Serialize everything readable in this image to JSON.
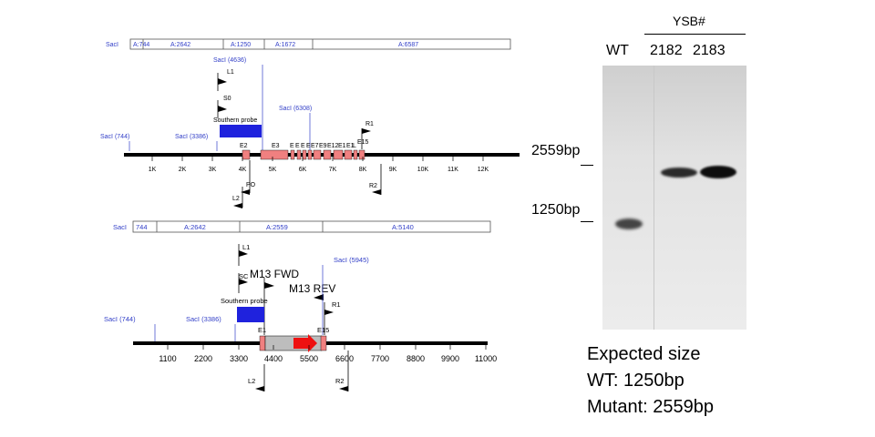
{
  "map1": {
    "segments": [
      "SacI",
      "A:744",
      "A:2642",
      "A:1250",
      "A:1672",
      "A:6587"
    ],
    "sites": {
      "saci_744": "SacI (744)",
      "saci_3386": "SacI (3386)",
      "saci_4636": "SacI (4636)",
      "saci_6308": "SacI (6308)"
    },
    "primers": {
      "l1": "L1",
      "s0": "S0",
      "po": "PO",
      "l2": "L2",
      "r1": "R1",
      "r2": "R2"
    },
    "probe": "Southern probe",
    "exons": [
      "E2",
      "E3",
      "E",
      "E",
      "E",
      "E",
      "E7",
      "E9",
      "E12",
      "E1",
      "E1",
      "L",
      "E15"
    ],
    "axis": [
      "1K",
      "2K",
      "3K",
      "4K",
      "5K",
      "6K",
      "7K",
      "8K",
      "9K",
      "10K",
      "11K",
      "12K"
    ]
  },
  "map2": {
    "segments": [
      "SacI",
      "744",
      "A:2642",
      "A:2559",
      "A:5140"
    ],
    "sites": {
      "saci_744": "SacI (744)",
      "saci_3386": "SacI (3386)",
      "saci_5945": "SacI (5945)"
    },
    "primers": {
      "l1": "L1",
      "sc": "SC",
      "m13fwd": "M13 FWD",
      "m13rev": "M13 REV",
      "r1": "R1",
      "l2": "L2",
      "r2": "R2"
    },
    "probe": "Southern probe",
    "exons": [
      "E1",
      "E15"
    ],
    "axis": [
      "1100",
      "2200",
      "3300",
      "4400",
      "5500",
      "6600",
      "7700",
      "8800",
      "9900",
      "11000"
    ]
  },
  "gel": {
    "header": "YSB#",
    "lanes": [
      "WT",
      "2182",
      "2183"
    ],
    "markers": [
      "2559bp",
      "1250bp"
    ]
  },
  "expected": {
    "title": "Expected size",
    "wt": "WT: 1250bp",
    "mutant": "Mutant: 2559bp"
  },
  "colors": {
    "backbone": "#000000",
    "exon": "#f08080",
    "probe": "#1f22dd",
    "cassette": "#bdbdbd",
    "arrow": "#ee1111",
    "annotation": "#3340c8"
  }
}
